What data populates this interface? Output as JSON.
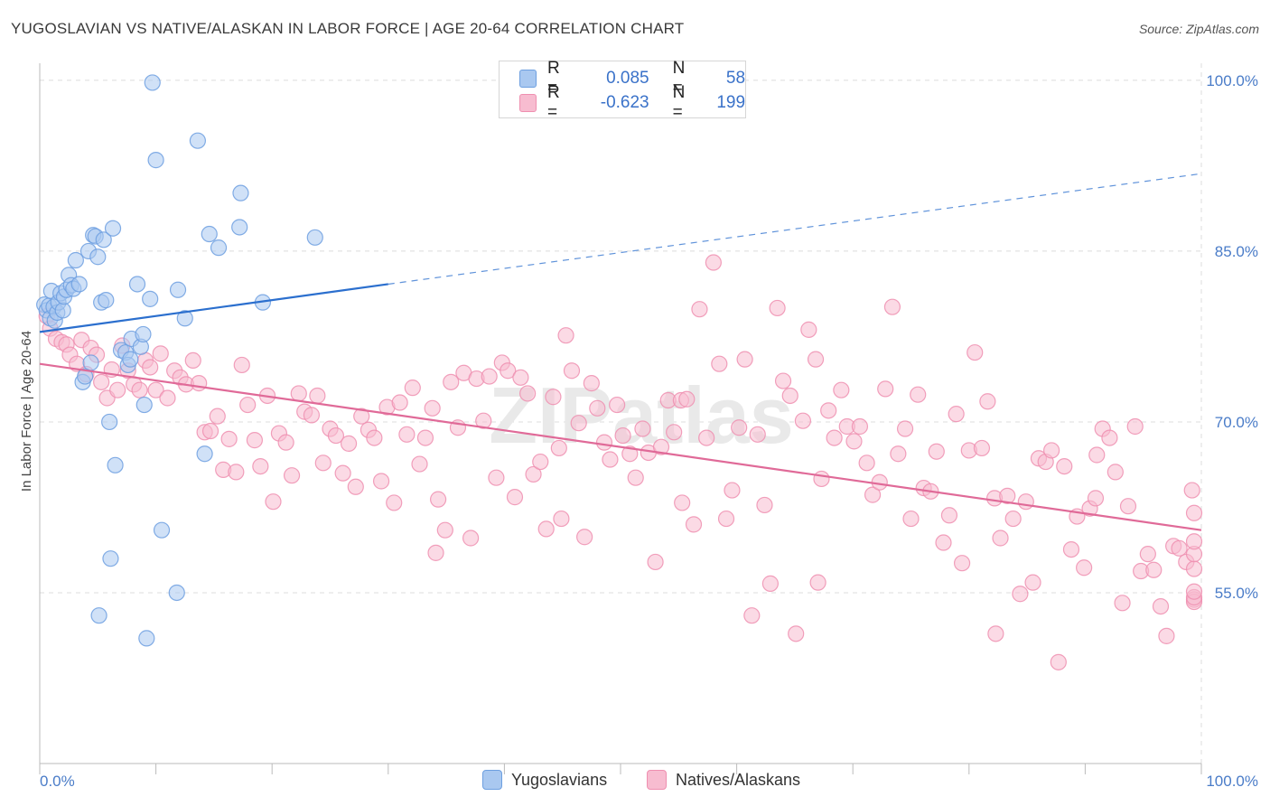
{
  "title": "YUGOSLAVIAN VS NATIVE/ALASKAN IN LABOR FORCE | AGE 20-64 CORRELATION CHART",
  "source": "Source: ZipAtlas.com",
  "watermark": "ZIPatlas",
  "legend": {
    "rows": [
      {
        "r_label": "R =",
        "r_value": "0.085",
        "n_label": "N =",
        "n_value": "58",
        "color": "#a9c8f0",
        "stroke": "#6d9fe0"
      },
      {
        "r_label": "R =",
        "r_value": "-0.623",
        "n_label": "N =",
        "n_value": "199",
        "color": "#f7bcd0",
        "stroke": "#ef8fb0"
      }
    ]
  },
  "bottom_legend": [
    {
      "label": "Yugoslavians",
      "color": "#a9c8f0",
      "stroke": "#6d9fe0"
    },
    {
      "label": "Natives/Alaskans",
      "color": "#f7bcd0",
      "stroke": "#ef8fb0"
    }
  ],
  "chart_data": {
    "type": "scatter",
    "ylabel": "In Labor Force | Age 20-64",
    "x_tick_labels": [
      "0.0%",
      "100.0%"
    ],
    "y_tick_labels": [
      "100.0%",
      "85.0%",
      "70.0%",
      "55.0%"
    ],
    "y_ticks": [
      100,
      85,
      70,
      55
    ],
    "xlim": [
      0,
      100
    ],
    "ylim": [
      40,
      101.5
    ],
    "grid": true,
    "series": [
      {
        "name": "Yugoslavians",
        "color": "#6d9fe0",
        "fill": "#a9c8f0",
        "trend": {
          "x0": 0,
          "y0": 77.9,
          "x1": 30,
          "y1": 82.1,
          "dash_to_x": 100,
          "dash_to_y": 91.8,
          "color": "#2b6fce"
        },
        "points": [
          [
            0.4,
            80.3
          ],
          [
            0.6,
            79.8
          ],
          [
            0.8,
            80.2
          ],
          [
            0.9,
            79.1
          ],
          [
            1.0,
            81.5
          ],
          [
            1.2,
            80.1
          ],
          [
            1.3,
            78.9
          ],
          [
            1.5,
            79.6
          ],
          [
            1.6,
            80.5
          ],
          [
            1.8,
            81.3
          ],
          [
            2.0,
            79.8
          ],
          [
            2.1,
            81.0
          ],
          [
            2.3,
            81.6
          ],
          [
            2.5,
            82.9
          ],
          [
            2.7,
            82.0
          ],
          [
            2.9,
            81.7
          ],
          [
            3.1,
            84.2
          ],
          [
            3.4,
            82.1
          ],
          [
            3.7,
            73.5
          ],
          [
            3.9,
            74.0
          ],
          [
            4.2,
            85.0
          ],
          [
            4.4,
            75.2
          ],
          [
            4.6,
            86.4
          ],
          [
            4.8,
            86.3
          ],
          [
            5.0,
            84.5
          ],
          [
            5.3,
            80.5
          ],
          [
            5.5,
            86.0
          ],
          [
            5.7,
            80.7
          ],
          [
            6.0,
            70.0
          ],
          [
            6.3,
            87.0
          ],
          [
            6.5,
            66.2
          ],
          [
            7.0,
            76.3
          ],
          [
            7.4,
            76.1
          ],
          [
            7.6,
            75.0
          ],
          [
            7.8,
            75.5
          ],
          [
            7.9,
            77.3
          ],
          [
            8.4,
            82.1
          ],
          [
            8.7,
            76.6
          ],
          [
            8.9,
            77.7
          ],
          [
            9.0,
            71.5
          ],
          [
            9.5,
            80.8
          ],
          [
            9.7,
            99.8
          ],
          [
            10.0,
            93.0
          ],
          [
            10.5,
            60.5
          ],
          [
            11.8,
            55.0
          ],
          [
            11.9,
            81.6
          ],
          [
            12.5,
            79.1
          ],
          [
            13.6,
            94.7
          ],
          [
            14.2,
            67.2
          ],
          [
            14.6,
            86.5
          ],
          [
            15.4,
            85.3
          ],
          [
            17.2,
            87.1
          ],
          [
            17.3,
            90.1
          ],
          [
            19.2,
            80.5
          ],
          [
            23.7,
            86.2
          ],
          [
            5.1,
            53.0
          ],
          [
            6.1,
            58.0
          ],
          [
            9.2,
            51.0
          ]
        ]
      },
      {
        "name": "Natives/Alaskans",
        "color": "#ef8fb0",
        "fill": "#f7bcd0",
        "trend": {
          "x0": 0,
          "y0": 75.1,
          "x1": 100,
          "y1": 60.5,
          "color": "#e06a98"
        },
        "points": [
          [
            0.6,
            79.3
          ],
          [
            0.9,
            78.2
          ],
          [
            1.4,
            77.3
          ],
          [
            1.9,
            77.0
          ],
          [
            2.3,
            76.8
          ],
          [
            2.6,
            75.9
          ],
          [
            3.2,
            75.1
          ],
          [
            3.6,
            77.2
          ],
          [
            4.0,
            74.2
          ],
          [
            4.4,
            76.5
          ],
          [
            4.9,
            75.9
          ],
          [
            5.3,
            73.5
          ],
          [
            5.8,
            72.1
          ],
          [
            6.2,
            74.6
          ],
          [
            6.7,
            72.8
          ],
          [
            7.1,
            76.7
          ],
          [
            7.6,
            74.5
          ],
          [
            8.1,
            73.3
          ],
          [
            8.6,
            72.8
          ],
          [
            9.1,
            75.4
          ],
          [
            9.5,
            74.8
          ],
          [
            10.0,
            72.8
          ],
          [
            10.4,
            76.0
          ],
          [
            11.0,
            72.1
          ],
          [
            11.6,
            74.5
          ],
          [
            12.1,
            73.9
          ],
          [
            12.6,
            73.3
          ],
          [
            13.2,
            75.4
          ],
          [
            13.7,
            73.4
          ],
          [
            14.2,
            69.1
          ],
          [
            14.7,
            69.2
          ],
          [
            15.3,
            70.5
          ],
          [
            15.8,
            65.8
          ],
          [
            16.3,
            68.5
          ],
          [
            16.9,
            65.6
          ],
          [
            17.4,
            75.0
          ],
          [
            17.9,
            71.5
          ],
          [
            18.5,
            68.4
          ],
          [
            19.0,
            66.1
          ],
          [
            19.6,
            72.3
          ],
          [
            20.1,
            63.0
          ],
          [
            20.6,
            69.0
          ],
          [
            21.2,
            68.2
          ],
          [
            21.7,
            65.3
          ],
          [
            22.3,
            72.5
          ],
          [
            22.8,
            70.9
          ],
          [
            23.4,
            70.6
          ],
          [
            23.9,
            72.3
          ],
          [
            24.4,
            66.4
          ],
          [
            25.0,
            69.4
          ],
          [
            25.5,
            68.8
          ],
          [
            26.1,
            65.5
          ],
          [
            26.6,
            68.1
          ],
          [
            27.2,
            64.3
          ],
          [
            27.7,
            70.5
          ],
          [
            28.3,
            69.3
          ],
          [
            28.8,
            68.6
          ],
          [
            29.4,
            64.8
          ],
          [
            29.9,
            71.3
          ],
          [
            30.5,
            62.9
          ],
          [
            31.0,
            71.7
          ],
          [
            31.6,
            68.9
          ],
          [
            32.1,
            73.0
          ],
          [
            32.7,
            66.3
          ],
          [
            33.2,
            68.6
          ],
          [
            33.8,
            71.2
          ],
          [
            34.3,
            63.2
          ],
          [
            34.9,
            60.5
          ],
          [
            35.4,
            73.5
          ],
          [
            36.0,
            69.5
          ],
          [
            36.5,
            74.3
          ],
          [
            37.1,
            59.8
          ],
          [
            37.6,
            73.8
          ],
          [
            38.2,
            70.1
          ],
          [
            38.7,
            74.0
          ],
          [
            39.3,
            65.1
          ],
          [
            39.8,
            75.2
          ],
          [
            40.3,
            74.5
          ],
          [
            40.9,
            63.4
          ],
          [
            41.4,
            73.9
          ],
          [
            42.0,
            72.5
          ],
          [
            42.5,
            65.4
          ],
          [
            43.1,
            66.5
          ],
          [
            43.6,
            60.6
          ],
          [
            44.2,
            72.2
          ],
          [
            44.7,
            67.7
          ],
          [
            45.3,
            77.6
          ],
          [
            45.8,
            74.5
          ],
          [
            46.4,
            69.9
          ],
          [
            46.9,
            59.9
          ],
          [
            47.5,
            73.4
          ],
          [
            48.0,
            71.2
          ],
          [
            48.6,
            68.2
          ],
          [
            49.1,
            66.7
          ],
          [
            49.7,
            71.5
          ],
          [
            50.2,
            68.8
          ],
          [
            50.8,
            67.2
          ],
          [
            51.3,
            65.1
          ],
          [
            51.9,
            69.4
          ],
          [
            52.4,
            67.3
          ],
          [
            53.0,
            57.7
          ],
          [
            53.5,
            67.8
          ],
          [
            54.1,
            71.9
          ],
          [
            54.6,
            69.1
          ],
          [
            55.2,
            71.9
          ],
          [
            55.7,
            72.0
          ],
          [
            56.3,
            61.0
          ],
          [
            56.8,
            79.9
          ],
          [
            57.4,
            68.6
          ],
          [
            58.0,
            84.0
          ],
          [
            58.5,
            75.1
          ],
          [
            59.1,
            61.5
          ],
          [
            59.6,
            64.0
          ],
          [
            60.2,
            69.5
          ],
          [
            60.7,
            75.5
          ],
          [
            61.3,
            53.0
          ],
          [
            61.8,
            68.9
          ],
          [
            62.4,
            62.7
          ],
          [
            62.9,
            55.8
          ],
          [
            63.5,
            80.0
          ],
          [
            64.0,
            73.6
          ],
          [
            64.6,
            72.3
          ],
          [
            65.1,
            51.4
          ],
          [
            65.7,
            70.1
          ],
          [
            66.2,
            78.1
          ],
          [
            66.8,
            75.5
          ],
          [
            67.3,
            65.0
          ],
          [
            67.9,
            71.0
          ],
          [
            68.4,
            68.6
          ],
          [
            69.0,
            72.8
          ],
          [
            69.5,
            69.6
          ],
          [
            70.1,
            68.3
          ],
          [
            70.6,
            69.6
          ],
          [
            71.2,
            66.4
          ],
          [
            71.7,
            63.6
          ],
          [
            72.3,
            64.7
          ],
          [
            72.8,
            72.9
          ],
          [
            73.4,
            80.1
          ],
          [
            73.9,
            67.2
          ],
          [
            74.5,
            69.4
          ],
          [
            75.0,
            61.5
          ],
          [
            75.6,
            72.4
          ],
          [
            76.1,
            64.2
          ],
          [
            76.7,
            63.9
          ],
          [
            77.2,
            67.4
          ],
          [
            77.8,
            59.4
          ],
          [
            78.3,
            61.8
          ],
          [
            78.9,
            70.7
          ],
          [
            79.4,
            57.6
          ],
          [
            80.0,
            67.5
          ],
          [
            80.5,
            76.1
          ],
          [
            81.1,
            67.7
          ],
          [
            81.6,
            71.8
          ],
          [
            82.2,
            63.3
          ],
          [
            82.7,
            59.8
          ],
          [
            83.3,
            63.5
          ],
          [
            83.8,
            61.5
          ],
          [
            84.4,
            54.9
          ],
          [
            84.9,
            63.0
          ],
          [
            85.5,
            55.9
          ],
          [
            86.0,
            66.8
          ],
          [
            86.6,
            66.5
          ],
          [
            87.1,
            67.5
          ],
          [
            87.7,
            48.9
          ],
          [
            88.2,
            66.1
          ],
          [
            88.8,
            58.8
          ],
          [
            89.3,
            61.7
          ],
          [
            89.9,
            57.2
          ],
          [
            90.4,
            62.4
          ],
          [
            91.0,
            67.1
          ],
          [
            91.5,
            69.4
          ],
          [
            92.1,
            68.6
          ],
          [
            92.6,
            65.6
          ],
          [
            93.2,
            54.1
          ],
          [
            93.7,
            62.6
          ],
          [
            94.3,
            69.6
          ],
          [
            94.8,
            56.9
          ],
          [
            95.4,
            58.4
          ],
          [
            95.9,
            57.0
          ],
          [
            96.5,
            53.8
          ],
          [
            97.0,
            51.2
          ],
          [
            97.6,
            59.1
          ],
          [
            98.1,
            58.9
          ],
          [
            98.7,
            57.7
          ],
          [
            99.2,
            64.0
          ],
          [
            99.8,
            54.4
          ],
          [
            100.3,
            57.1
          ],
          [
            100.9,
            58.4
          ],
          [
            101.4,
            54.2
          ],
          [
            102.0,
            54.6
          ],
          [
            102.5,
            62.0
          ],
          [
            103.1,
            59.5
          ],
          [
            103.6,
            55.1
          ],
          [
            34.1,
            58.5
          ],
          [
            44.9,
            61.5
          ],
          [
            55.3,
            62.9
          ],
          [
            67.0,
            55.9
          ],
          [
            82.3,
            51.4
          ],
          [
            90.9,
            63.3
          ]
        ]
      }
    ]
  }
}
